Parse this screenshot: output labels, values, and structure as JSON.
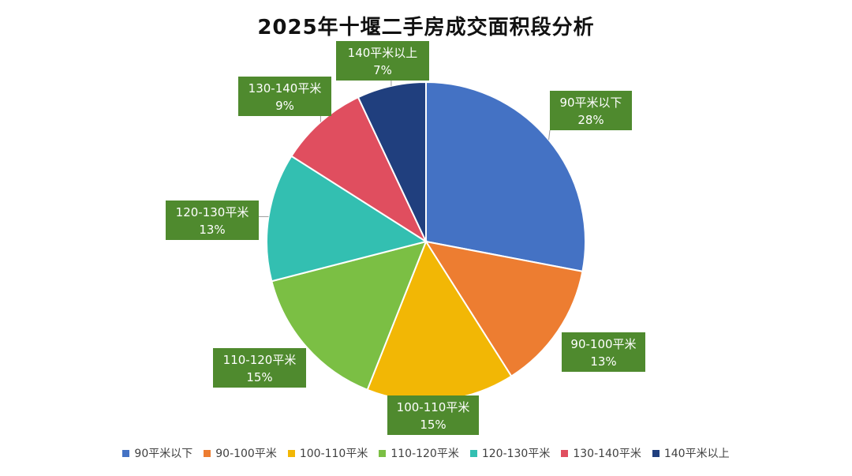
{
  "chart_data": {
    "type": "pie",
    "title": "2025年十堰二手房成交面积段分析",
    "categories": [
      "90平米以下",
      "90-100平米",
      "100-110平米",
      "110-120平米",
      "120-130平米",
      "130-140平米",
      "140平米以上"
    ],
    "values": [
      28,
      13,
      15,
      15,
      13,
      9,
      7
    ],
    "value_labels": [
      "28%",
      "13%",
      "15%",
      "15%",
      "13%",
      "9%",
      "7%"
    ],
    "colors": [
      "#4472C4",
      "#ED7D31",
      "#F2B705",
      "#7BBF44",
      "#33BFB1",
      "#E04E5F",
      "#203F7E"
    ],
    "label_box_color": "#4F8A2E",
    "legend_position": "bottom"
  }
}
